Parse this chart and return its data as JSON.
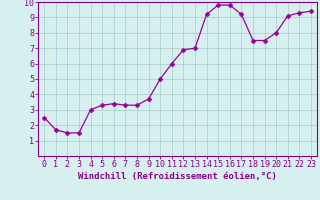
{
  "x": [
    0,
    1,
    2,
    3,
    4,
    5,
    6,
    7,
    8,
    9,
    10,
    11,
    12,
    13,
    14,
    15,
    16,
    17,
    18,
    19,
    20,
    21,
    22,
    23
  ],
  "y": [
    2.5,
    1.7,
    1.5,
    1.5,
    3.0,
    3.3,
    3.4,
    3.3,
    3.3,
    3.7,
    5.0,
    6.0,
    6.9,
    7.0,
    9.2,
    9.8,
    9.8,
    9.2,
    7.5,
    7.5,
    8.0,
    9.1,
    9.3,
    9.4
  ],
  "line_color": "#990099",
  "marker": "D",
  "marker_size": 2.5,
  "bg_color": "#d6f0f0",
  "grid_color": "#b0d0d0",
  "xlabel": "Windchill (Refroidissement éolien,°C)",
  "ylabel": "",
  "xlim": [
    -0.5,
    23.5
  ],
  "ylim": [
    0,
    10
  ],
  "xticks": [
    0,
    1,
    2,
    3,
    4,
    5,
    6,
    7,
    8,
    9,
    10,
    11,
    12,
    13,
    14,
    15,
    16,
    17,
    18,
    19,
    20,
    21,
    22,
    23
  ],
  "yticks": [
    1,
    2,
    3,
    4,
    5,
    6,
    7,
    8,
    9,
    10
  ],
  "xlabel_fontsize": 6.5,
  "tick_fontsize": 6,
  "axis_color": "#880088",
  "spine_color": "#880088"
}
